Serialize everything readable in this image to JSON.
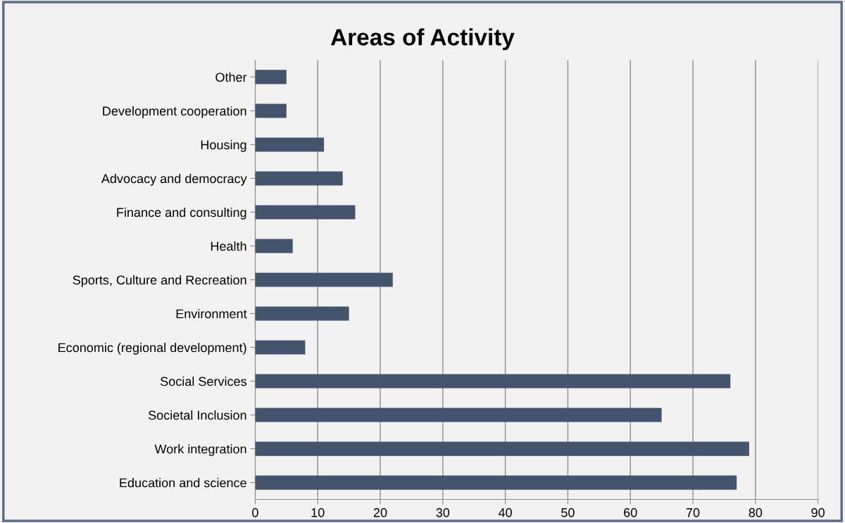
{
  "chart_data": {
    "type": "bar",
    "orientation": "horizontal",
    "title": "Areas of Activity",
    "categories": [
      "Other",
      "Development cooperation",
      "Housing",
      "Advocacy and democracy",
      "Finance and consulting",
      "Health",
      "Sports, Culture and Recreation",
      "Environment",
      "Economic (regional development)",
      "Social Services",
      "Societal Inclusion",
      "Work integration",
      "Education and science"
    ],
    "values": [
      5,
      5,
      11,
      14,
      16,
      6,
      22,
      15,
      8,
      76,
      65,
      79,
      77
    ],
    "color": "#44546a",
    "xlim": [
      0,
      90
    ],
    "xticks": [
      0,
      10,
      20,
      30,
      40,
      50,
      60,
      70,
      80,
      90
    ],
    "grid": "x",
    "legend": false
  }
}
